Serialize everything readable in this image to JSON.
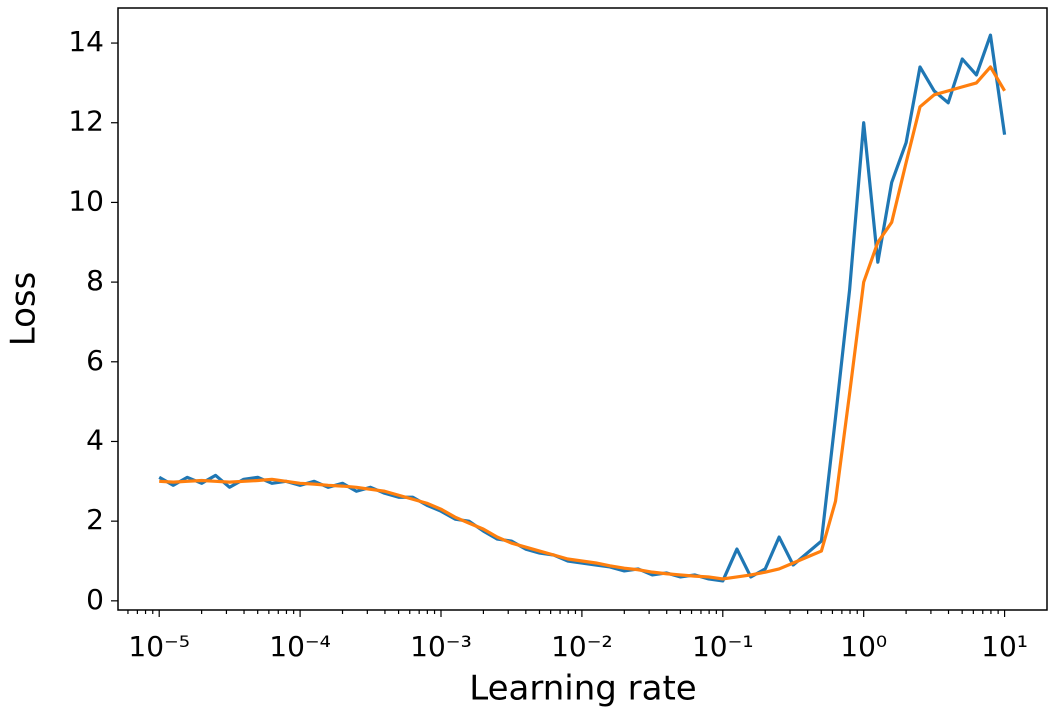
{
  "chart_data": {
    "type": "line",
    "xlabel": "Learning rate",
    "ylabel": "Loss",
    "xscale": "log",
    "xlim": [
      5.1e-06,
      20
    ],
    "ylim": [
      -0.23,
      14.88
    ],
    "xticks": [
      {
        "value": 1e-05,
        "label": "10⁻⁵"
      },
      {
        "value": 0.0001,
        "label": "10⁻⁴"
      },
      {
        "value": 0.001,
        "label": "10⁻³"
      },
      {
        "value": 0.01,
        "label": "10⁻²"
      },
      {
        "value": 0.1,
        "label": "10⁻¹"
      },
      {
        "value": 1,
        "label": "10⁰"
      },
      {
        "value": 10,
        "label": "10¹"
      }
    ],
    "xminorticks": [
      6e-06,
      7e-06,
      8e-06,
      9e-06,
      2e-05,
      3e-05,
      4e-05,
      5e-05,
      6e-05,
      7e-05,
      8e-05,
      9e-05,
      0.0002,
      0.0003,
      0.0004,
      0.0005,
      0.0006,
      0.0007,
      0.0008,
      0.0009,
      0.002,
      0.003,
      0.004,
      0.005,
      0.006,
      0.007,
      0.008,
      0.009,
      0.02,
      0.03,
      0.04,
      0.05,
      0.06,
      0.07,
      0.08,
      0.09,
      0.2,
      0.3,
      0.4,
      0.5,
      0.6,
      0.7,
      0.8,
      0.9,
      2,
      3,
      4,
      5,
      6,
      7,
      8,
      9
    ],
    "yticks": [
      0,
      2,
      4,
      6,
      8,
      10,
      12,
      14
    ],
    "grid": false,
    "x": [
      1e-05,
      1.26e-05,
      1.58e-05,
      2e-05,
      2.51e-05,
      3.16e-05,
      3.98e-05,
      5.01e-05,
      6.31e-05,
      7.94e-05,
      0.0001,
      0.000126,
      0.000158,
      0.0002,
      0.000251,
      0.000316,
      0.000398,
      0.000501,
      0.000631,
      0.000794,
      0.001,
      0.00126,
      0.00158,
      0.002,
      0.00251,
      0.00316,
      0.00398,
      0.00501,
      0.00631,
      0.00794,
      0.01,
      0.0126,
      0.0158,
      0.02,
      0.0251,
      0.0316,
      0.0398,
      0.0501,
      0.0631,
      0.0794,
      0.1,
      0.126,
      0.158,
      0.2,
      0.251,
      0.316,
      0.398,
      0.501,
      0.631,
      0.794,
      1,
      1.26,
      1.58,
      2,
      2.51,
      3.16,
      3.98,
      5.01,
      6.31,
      7.94,
      10
    ],
    "series": [
      {
        "color": "#1f77b4",
        "values": [
          3.1,
          2.9,
          3.1,
          2.95,
          3.15,
          2.85,
          3.05,
          3.1,
          2.95,
          3.0,
          2.9,
          3.0,
          2.85,
          2.95,
          2.75,
          2.85,
          2.7,
          2.6,
          2.6,
          2.4,
          2.25,
          2.05,
          2.0,
          1.75,
          1.55,
          1.5,
          1.3,
          1.2,
          1.15,
          1.0,
          0.95,
          0.9,
          0.85,
          0.75,
          0.8,
          0.65,
          0.7,
          0.6,
          0.65,
          0.55,
          0.5,
          1.3,
          0.6,
          0.8,
          1.6,
          0.9,
          1.2,
          1.5,
          4.6,
          7.8,
          12.0,
          8.5,
          10.5,
          11.5,
          13.4,
          12.8,
          12.5,
          13.6,
          13.2,
          14.2,
          11.7
        ]
      },
      {
        "color": "#ff7f0e",
        "values": [
          3.0,
          2.98,
          3.0,
          3.02,
          3.0,
          2.98,
          3.0,
          3.02,
          3.05,
          3.0,
          2.95,
          2.93,
          2.9,
          2.88,
          2.85,
          2.8,
          2.75,
          2.65,
          2.55,
          2.45,
          2.3,
          2.1,
          1.95,
          1.8,
          1.6,
          1.45,
          1.35,
          1.25,
          1.15,
          1.05,
          1.0,
          0.95,
          0.88,
          0.82,
          0.78,
          0.72,
          0.68,
          0.65,
          0.62,
          0.6,
          0.55,
          0.6,
          0.65,
          0.72,
          0.8,
          0.95,
          1.1,
          1.25,
          2.5,
          5.2,
          8.0,
          9.0,
          9.5,
          11.0,
          12.4,
          12.7,
          12.8,
          12.9,
          13.0,
          13.4,
          12.8
        ]
      }
    ]
  }
}
